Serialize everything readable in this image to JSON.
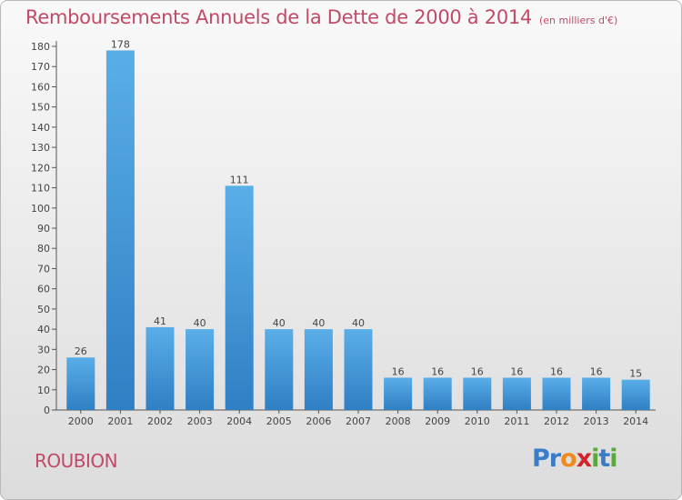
{
  "title": "Remboursements Annuels de la Dette de 2000 à 2014",
  "unit": "(en milliers d'€)",
  "commune": "ROUBION",
  "logo": {
    "letters": [
      {
        "char": "P",
        "color": "#3a7cc7"
      },
      {
        "char": "r",
        "color": "#3a7cc7"
      },
      {
        "char": "o",
        "color": "#f08a1c"
      },
      {
        "char": "x",
        "color": "#d2232a"
      },
      {
        "char": "i",
        "color": "#5aa83c"
      },
      {
        "char": "t",
        "color": "#3a7cc7"
      },
      {
        "char": "i",
        "color": "#5aa83c"
      }
    ]
  },
  "colors": {
    "title": "#c14a67",
    "bar_top": "#5aaee8",
    "bar_bottom": "#2f7fc4"
  },
  "chart_data": {
    "type": "bar",
    "title": "Remboursements Annuels de la Dette de 2000 à 2014",
    "xlabel": "",
    "ylabel": "",
    "categories": [
      "2000",
      "2001",
      "2002",
      "2003",
      "2004",
      "2005",
      "2006",
      "2007",
      "2008",
      "2009",
      "2010",
      "2011",
      "2012",
      "2013",
      "2014"
    ],
    "values": [
      26,
      178,
      41,
      40,
      111,
      40,
      40,
      40,
      16,
      16,
      16,
      16,
      16,
      16,
      15
    ],
    "ylim": [
      0,
      180
    ],
    "yticks": [
      0,
      10,
      20,
      30,
      40,
      50,
      60,
      70,
      80,
      90,
      100,
      110,
      120,
      130,
      140,
      150,
      160,
      170,
      180
    ],
    "grid": false,
    "legend": "none"
  }
}
